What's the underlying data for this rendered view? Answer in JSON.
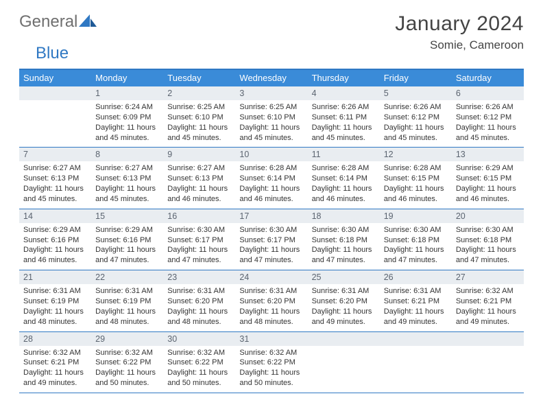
{
  "brand": {
    "general": "General",
    "blue": "Blue"
  },
  "title": "January 2024",
  "location": "Somie, Cameroon",
  "colors": {
    "header_bar": "#3a8bd8",
    "rule": "#2f78c3",
    "daynum_bg": "#e9edf1",
    "text": "#333333",
    "muted": "#5b6470",
    "logo_gray": "#6f6f6f",
    "logo_blue": "#2f78c3"
  },
  "typography": {
    "title_fontsize": 30,
    "location_fontsize": 17,
    "dow_fontsize": 13,
    "daynum_fontsize": 12.5,
    "body_fontsize": 11
  },
  "dow": [
    "Sunday",
    "Monday",
    "Tuesday",
    "Wednesday",
    "Thursday",
    "Friday",
    "Saturday"
  ],
  "weeks": [
    [
      null,
      {
        "n": "1",
        "sr": "Sunrise: 6:24 AM",
        "ss": "Sunset: 6:09 PM",
        "d1": "Daylight: 11 hours",
        "d2": "and 45 minutes."
      },
      {
        "n": "2",
        "sr": "Sunrise: 6:25 AM",
        "ss": "Sunset: 6:10 PM",
        "d1": "Daylight: 11 hours",
        "d2": "and 45 minutes."
      },
      {
        "n": "3",
        "sr": "Sunrise: 6:25 AM",
        "ss": "Sunset: 6:10 PM",
        "d1": "Daylight: 11 hours",
        "d2": "and 45 minutes."
      },
      {
        "n": "4",
        "sr": "Sunrise: 6:26 AM",
        "ss": "Sunset: 6:11 PM",
        "d1": "Daylight: 11 hours",
        "d2": "and 45 minutes."
      },
      {
        "n": "5",
        "sr": "Sunrise: 6:26 AM",
        "ss": "Sunset: 6:12 PM",
        "d1": "Daylight: 11 hours",
        "d2": "and 45 minutes."
      },
      {
        "n": "6",
        "sr": "Sunrise: 6:26 AM",
        "ss": "Sunset: 6:12 PM",
        "d1": "Daylight: 11 hours",
        "d2": "and 45 minutes."
      }
    ],
    [
      {
        "n": "7",
        "sr": "Sunrise: 6:27 AM",
        "ss": "Sunset: 6:13 PM",
        "d1": "Daylight: 11 hours",
        "d2": "and 45 minutes."
      },
      {
        "n": "8",
        "sr": "Sunrise: 6:27 AM",
        "ss": "Sunset: 6:13 PM",
        "d1": "Daylight: 11 hours",
        "d2": "and 45 minutes."
      },
      {
        "n": "9",
        "sr": "Sunrise: 6:27 AM",
        "ss": "Sunset: 6:13 PM",
        "d1": "Daylight: 11 hours",
        "d2": "and 46 minutes."
      },
      {
        "n": "10",
        "sr": "Sunrise: 6:28 AM",
        "ss": "Sunset: 6:14 PM",
        "d1": "Daylight: 11 hours",
        "d2": "and 46 minutes."
      },
      {
        "n": "11",
        "sr": "Sunrise: 6:28 AM",
        "ss": "Sunset: 6:14 PM",
        "d1": "Daylight: 11 hours",
        "d2": "and 46 minutes."
      },
      {
        "n": "12",
        "sr": "Sunrise: 6:28 AM",
        "ss": "Sunset: 6:15 PM",
        "d1": "Daylight: 11 hours",
        "d2": "and 46 minutes."
      },
      {
        "n": "13",
        "sr": "Sunrise: 6:29 AM",
        "ss": "Sunset: 6:15 PM",
        "d1": "Daylight: 11 hours",
        "d2": "and 46 minutes."
      }
    ],
    [
      {
        "n": "14",
        "sr": "Sunrise: 6:29 AM",
        "ss": "Sunset: 6:16 PM",
        "d1": "Daylight: 11 hours",
        "d2": "and 46 minutes."
      },
      {
        "n": "15",
        "sr": "Sunrise: 6:29 AM",
        "ss": "Sunset: 6:16 PM",
        "d1": "Daylight: 11 hours",
        "d2": "and 47 minutes."
      },
      {
        "n": "16",
        "sr": "Sunrise: 6:30 AM",
        "ss": "Sunset: 6:17 PM",
        "d1": "Daylight: 11 hours",
        "d2": "and 47 minutes."
      },
      {
        "n": "17",
        "sr": "Sunrise: 6:30 AM",
        "ss": "Sunset: 6:17 PM",
        "d1": "Daylight: 11 hours",
        "d2": "and 47 minutes."
      },
      {
        "n": "18",
        "sr": "Sunrise: 6:30 AM",
        "ss": "Sunset: 6:18 PM",
        "d1": "Daylight: 11 hours",
        "d2": "and 47 minutes."
      },
      {
        "n": "19",
        "sr": "Sunrise: 6:30 AM",
        "ss": "Sunset: 6:18 PM",
        "d1": "Daylight: 11 hours",
        "d2": "and 47 minutes."
      },
      {
        "n": "20",
        "sr": "Sunrise: 6:30 AM",
        "ss": "Sunset: 6:18 PM",
        "d1": "Daylight: 11 hours",
        "d2": "and 47 minutes."
      }
    ],
    [
      {
        "n": "21",
        "sr": "Sunrise: 6:31 AM",
        "ss": "Sunset: 6:19 PM",
        "d1": "Daylight: 11 hours",
        "d2": "and 48 minutes."
      },
      {
        "n": "22",
        "sr": "Sunrise: 6:31 AM",
        "ss": "Sunset: 6:19 PM",
        "d1": "Daylight: 11 hours",
        "d2": "and 48 minutes."
      },
      {
        "n": "23",
        "sr": "Sunrise: 6:31 AM",
        "ss": "Sunset: 6:20 PM",
        "d1": "Daylight: 11 hours",
        "d2": "and 48 minutes."
      },
      {
        "n": "24",
        "sr": "Sunrise: 6:31 AM",
        "ss": "Sunset: 6:20 PM",
        "d1": "Daylight: 11 hours",
        "d2": "and 48 minutes."
      },
      {
        "n": "25",
        "sr": "Sunrise: 6:31 AM",
        "ss": "Sunset: 6:20 PM",
        "d1": "Daylight: 11 hours",
        "d2": "and 49 minutes."
      },
      {
        "n": "26",
        "sr": "Sunrise: 6:31 AM",
        "ss": "Sunset: 6:21 PM",
        "d1": "Daylight: 11 hours",
        "d2": "and 49 minutes."
      },
      {
        "n": "27",
        "sr": "Sunrise: 6:32 AM",
        "ss": "Sunset: 6:21 PM",
        "d1": "Daylight: 11 hours",
        "d2": "and 49 minutes."
      }
    ],
    [
      {
        "n": "28",
        "sr": "Sunrise: 6:32 AM",
        "ss": "Sunset: 6:21 PM",
        "d1": "Daylight: 11 hours",
        "d2": "and 49 minutes."
      },
      {
        "n": "29",
        "sr": "Sunrise: 6:32 AM",
        "ss": "Sunset: 6:22 PM",
        "d1": "Daylight: 11 hours",
        "d2": "and 50 minutes."
      },
      {
        "n": "30",
        "sr": "Sunrise: 6:32 AM",
        "ss": "Sunset: 6:22 PM",
        "d1": "Daylight: 11 hours",
        "d2": "and 50 minutes."
      },
      {
        "n": "31",
        "sr": "Sunrise: 6:32 AM",
        "ss": "Sunset: 6:22 PM",
        "d1": "Daylight: 11 hours",
        "d2": "and 50 minutes."
      },
      null,
      null,
      null
    ]
  ]
}
